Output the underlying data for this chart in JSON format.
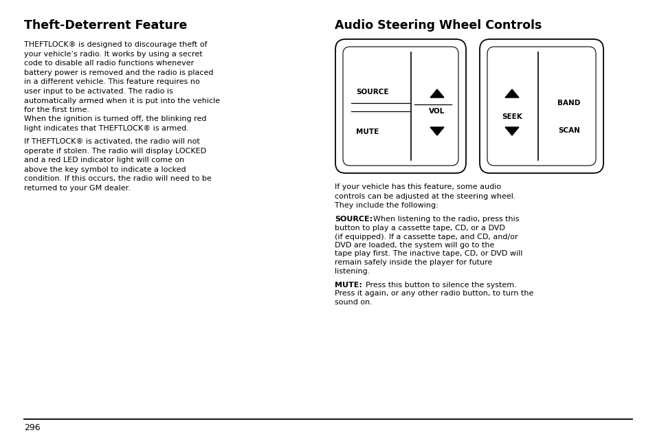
{
  "bg_color": "#ffffff",
  "left_title": "Theft-Deterrent Feature",
  "right_title": "Audio Steering Wheel Controls",
  "left_para1": "THEFTLOCK® is designed to discourage theft of\nyour vehicle’s radio. It works by using a secret\ncode to disable all radio functions whenever\nbattery power is removed and the radio is placed\nin a different vehicle. This feature requires no\nuser input to be activated. The radio is\nautomatically armed when it is put into the vehicle\nfor the first time.",
  "left_para2": "When the ignition is turned off, the blinking red\nlight indicates that THEFTLOCK® is armed.",
  "left_para3": "If THEFTLOCK® is activated, the radio will not\noperate if stolen. The radio will display LOCKED\nand a red LED indicator light will come on\nabove the key symbol to indicate a locked\ncondition. If this occurs, the radio will need to be\nreturned to your GM dealer.",
  "right_para1": "If your vehicle has this feature, some audio\ncontrols can be adjusted at the steering wheel.\nThey include the following:",
  "right_para2_bold": "SOURCE:",
  "right_para2_rest": " When listening to the radio, press this\nbutton to play a cassette tape, CD, or a DVD\n(if equipped). If a cassette tape, and CD, and/or\nDVD are loaded, the system will go to the\ntape play first. The inactive tape, CD, or DVD will\nremain safely inside the player for future\nlistening.",
  "right_para3_bold": "MUTE:",
  "right_para3_rest": " Press this button to silence the system.\nPress it again, or any other radio button, to turn the\nsound on.",
  "page_number": "296",
  "font_color": "#000000"
}
